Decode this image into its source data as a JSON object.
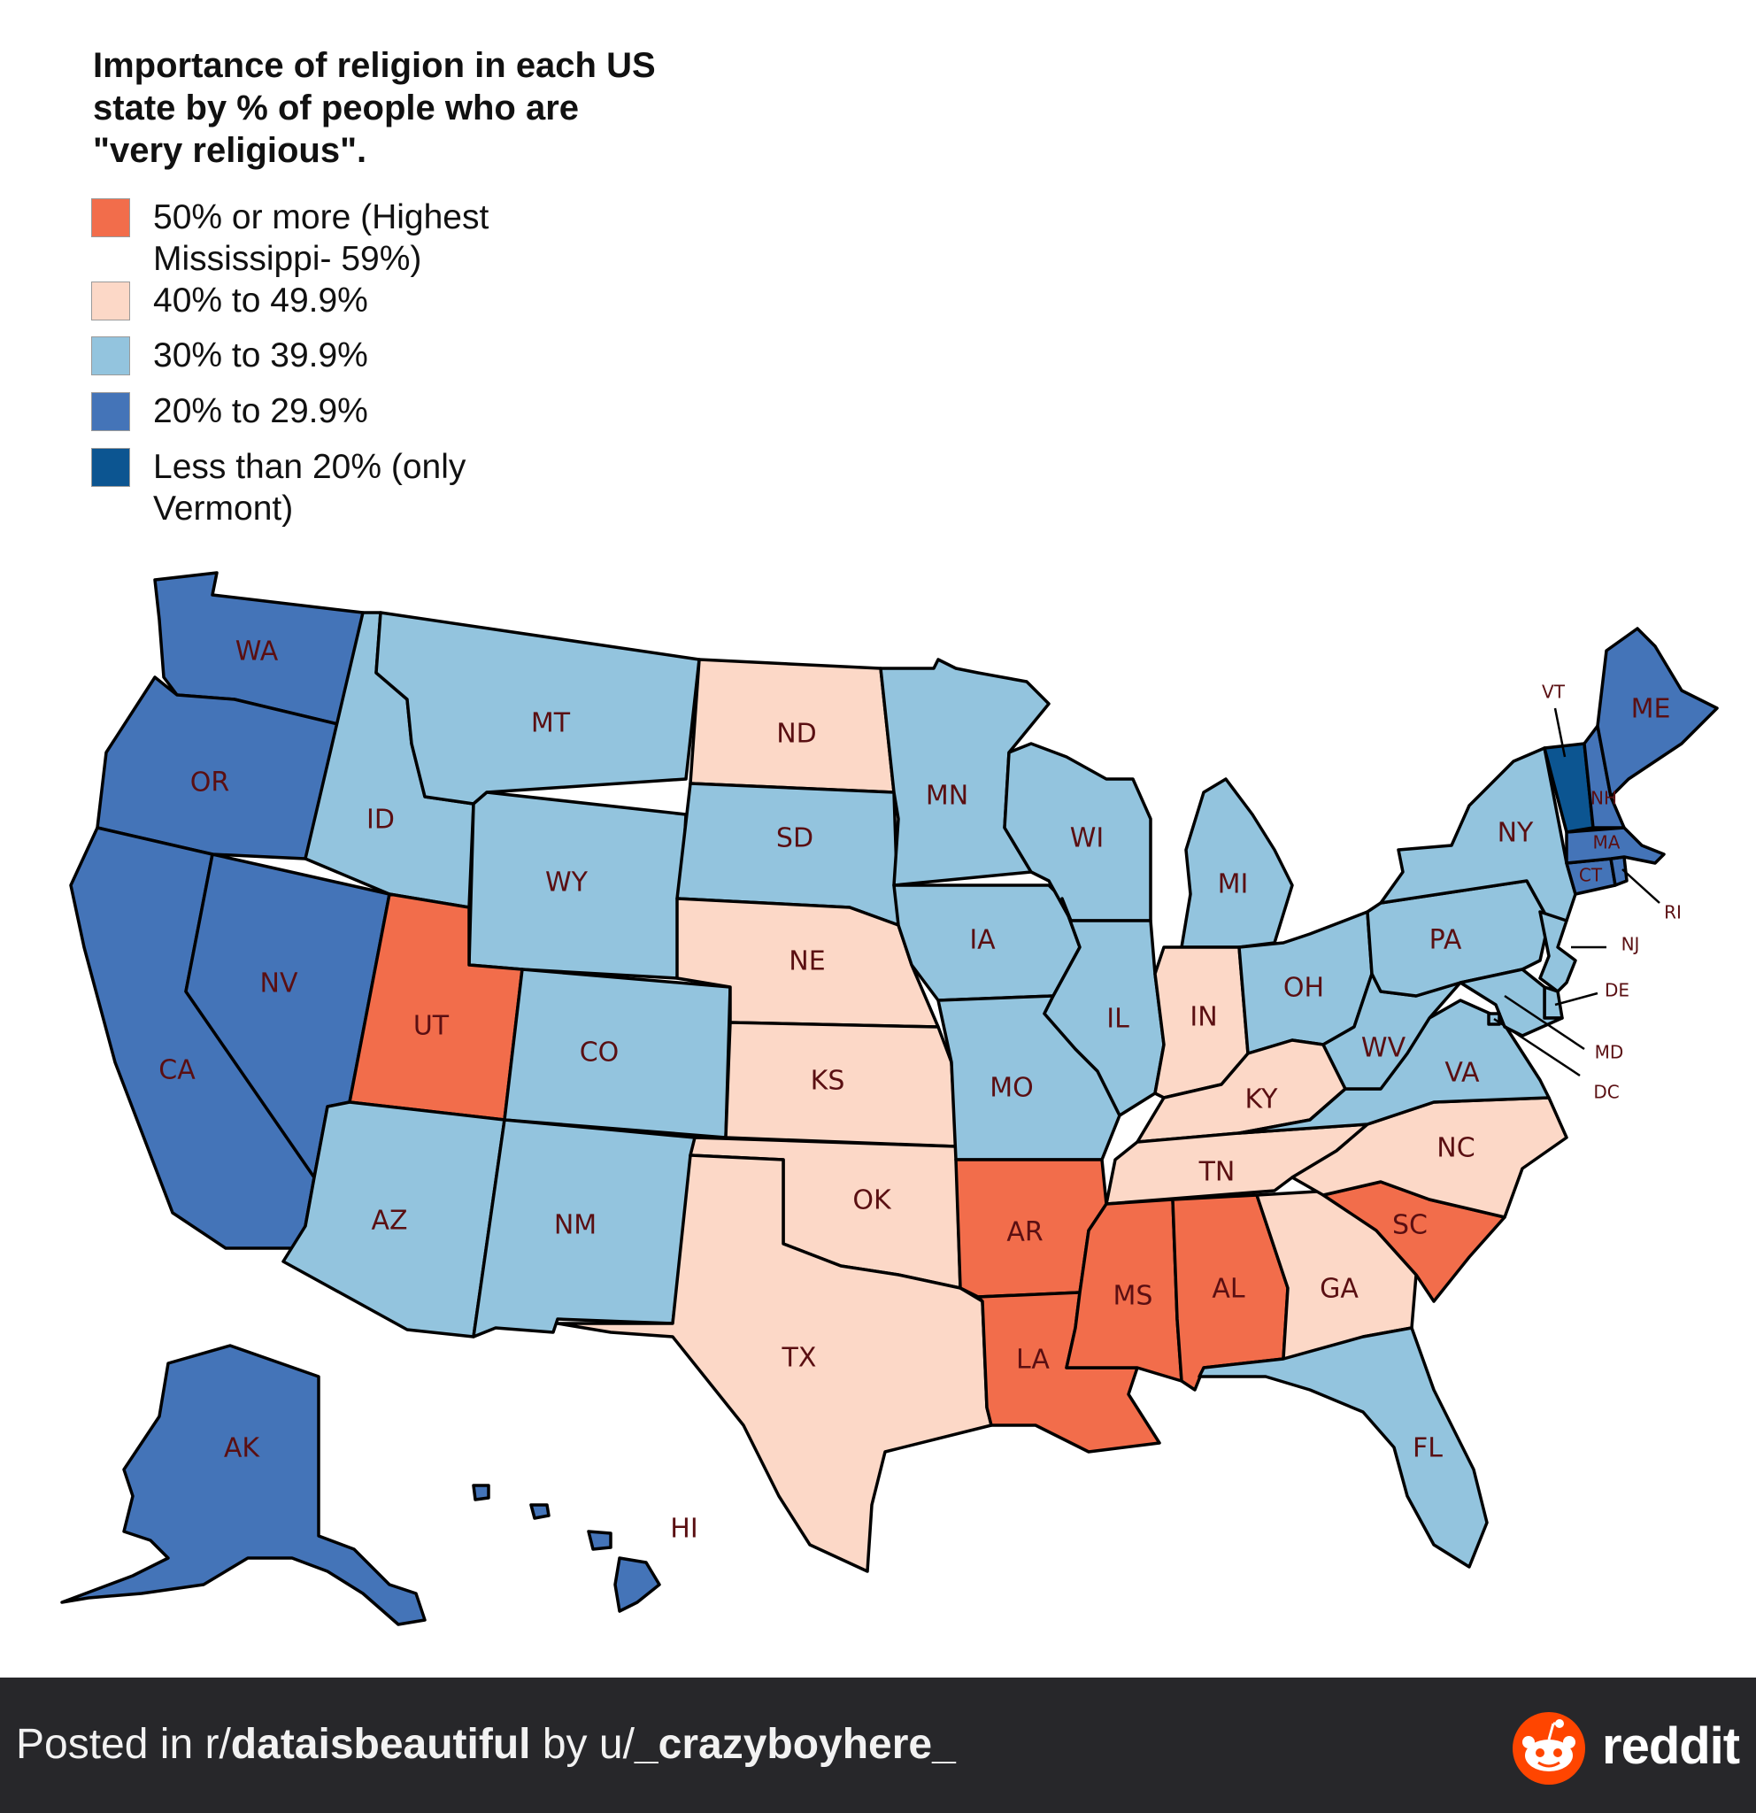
{
  "title": "Importance of religion in each US state by % of people who are \"very religious\".",
  "colors": {
    "cat50": "#f26d4b",
    "cat40": "#fcd8c7",
    "cat30": "#93c4de",
    "cat20": "#4474b8",
    "cat10": "#0c5591",
    "label": "#5a0f12",
    "footer_bg": "#27272a",
    "reddit_orange": "#ff4500"
  },
  "legend": [
    {
      "id": "cat50",
      "label": "50% or more (Highest Mississippi- 59%)",
      "color": "#f26d4b"
    },
    {
      "id": "cat40",
      "label": "40% to 49.9%",
      "color": "#fcd8c7"
    },
    {
      "id": "cat30",
      "label": "30% to 39.9%",
      "color": "#93c4de"
    },
    {
      "id": "cat20",
      "label": "20% to 29.9%",
      "color": "#4474b8"
    },
    {
      "id": "cat10",
      "label": "Less than 20% (only Vermont)",
      "color": "#0c5591"
    }
  ],
  "states": [
    {
      "abbr": "WA",
      "category": "cat20"
    },
    {
      "abbr": "OR",
      "category": "cat20"
    },
    {
      "abbr": "CA",
      "category": "cat20"
    },
    {
      "abbr": "NV",
      "category": "cat20"
    },
    {
      "abbr": "ID",
      "category": "cat30"
    },
    {
      "abbr": "MT",
      "category": "cat30"
    },
    {
      "abbr": "WY",
      "category": "cat30"
    },
    {
      "abbr": "UT",
      "category": "cat50"
    },
    {
      "abbr": "CO",
      "category": "cat30"
    },
    {
      "abbr": "AZ",
      "category": "cat30"
    },
    {
      "abbr": "NM",
      "category": "cat30"
    },
    {
      "abbr": "ND",
      "category": "cat40"
    },
    {
      "abbr": "SD",
      "category": "cat30"
    },
    {
      "abbr": "NE",
      "category": "cat40"
    },
    {
      "abbr": "KS",
      "category": "cat40"
    },
    {
      "abbr": "OK",
      "category": "cat40"
    },
    {
      "abbr": "TX",
      "category": "cat40"
    },
    {
      "abbr": "MN",
      "category": "cat30"
    },
    {
      "abbr": "IA",
      "category": "cat30"
    },
    {
      "abbr": "MO",
      "category": "cat30"
    },
    {
      "abbr": "AR",
      "category": "cat50"
    },
    {
      "abbr": "LA",
      "category": "cat50"
    },
    {
      "abbr": "WI",
      "category": "cat30"
    },
    {
      "abbr": "IL",
      "category": "cat30"
    },
    {
      "abbr": "MI",
      "category": "cat30"
    },
    {
      "abbr": "IN",
      "category": "cat40"
    },
    {
      "abbr": "OH",
      "category": "cat30"
    },
    {
      "abbr": "KY",
      "category": "cat40"
    },
    {
      "abbr": "TN",
      "category": "cat40"
    },
    {
      "abbr": "MS",
      "category": "cat50"
    },
    {
      "abbr": "AL",
      "category": "cat50"
    },
    {
      "abbr": "GA",
      "category": "cat40"
    },
    {
      "abbr": "FL",
      "category": "cat30"
    },
    {
      "abbr": "SC",
      "category": "cat50"
    },
    {
      "abbr": "NC",
      "category": "cat40"
    },
    {
      "abbr": "VA",
      "category": "cat30"
    },
    {
      "abbr": "WV",
      "category": "cat30"
    },
    {
      "abbr": "PA",
      "category": "cat30"
    },
    {
      "abbr": "NY",
      "category": "cat30"
    },
    {
      "abbr": "NJ",
      "category": "cat30"
    },
    {
      "abbr": "DE",
      "category": "cat30"
    },
    {
      "abbr": "MD",
      "category": "cat30"
    },
    {
      "abbr": "DC",
      "category": "cat30"
    },
    {
      "abbr": "CT",
      "category": "cat20"
    },
    {
      "abbr": "RI",
      "category": "cat20"
    },
    {
      "abbr": "MA",
      "category": "cat20"
    },
    {
      "abbr": "VT",
      "category": "cat10"
    },
    {
      "abbr": "NH",
      "category": "cat20"
    },
    {
      "abbr": "ME",
      "category": "cat20"
    },
    {
      "abbr": "AK",
      "category": "cat20"
    },
    {
      "abbr": "HI",
      "category": "cat20"
    }
  ],
  "footer": {
    "prefix": "Posted in r/",
    "subreddit": "dataisbeautiful",
    "by": " by u/",
    "username": "_crazyboyhere_",
    "brand": "reddit",
    "brand_icon": "reddit-alien-icon"
  }
}
